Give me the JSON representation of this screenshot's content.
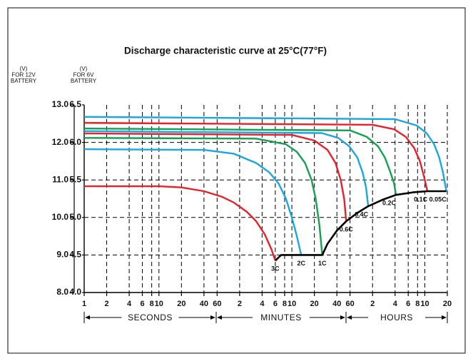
{
  "chart_data": {
    "type": "line",
    "title": "Discharge characteristic curve at 25°C(77°F)",
    "y_axis_label": [
      "(V)",
      "FOR 12V",
      "BATTERY"
    ],
    "y2_axis_label": [
      "(V)",
      "FOR 6V",
      "BATTERY"
    ],
    "x_sections": [
      "SECONDS",
      "MINUTES",
      "HOURS"
    ],
    "log_x": true,
    "grid": true,
    "xlim": [
      1,
      72000
    ],
    "xticks": [
      1,
      2,
      4,
      6,
      8,
      10,
      20,
      40,
      60,
      {
        "value": 120,
        "label": "2"
      },
      {
        "value": 240,
        "label": "4"
      },
      {
        "value": 360,
        "label": "6"
      },
      {
        "value": 480,
        "label": "8"
      },
      {
        "value": 600,
        "label": "10"
      },
      {
        "value": 1200,
        "label": "20"
      },
      {
        "value": 2400,
        "label": "40"
      },
      {
        "value": 3600,
        "label": "60"
      },
      {
        "value": 7200,
        "label": "2"
      },
      {
        "value": 14400,
        "label": "4"
      },
      {
        "value": 21600,
        "label": "6"
      },
      {
        "value": 28800,
        "label": "8"
      },
      {
        "value": 36000,
        "label": "10"
      },
      {
        "value": 72000,
        "label": "20"
      }
    ],
    "ylim": [
      8,
      13
    ],
    "yticks": [
      {
        "value": 13,
        "label": "13.0"
      },
      {
        "value": 12,
        "label": "12.0"
      },
      {
        "value": 11,
        "label": "11.0"
      },
      {
        "value": 10,
        "label": "10.0"
      },
      {
        "value": 9,
        "label": "9.0"
      },
      {
        "value": 8,
        "label": "8.0"
      }
    ],
    "y2lim": [
      4,
      6.5
    ],
    "y2ticks": [
      6.5,
      {
        "value": 6,
        "label": "6.0"
      },
      5.5,
      {
        "value": 5,
        "label": "5.0"
      },
      4.5,
      {
        "value": 4,
        "label": "4.0"
      }
    ],
    "series": [
      {
        "name": "3C",
        "color": "#e8202a",
        "x": [
          1,
          10,
          20,
          40,
          70,
          100,
          150,
          200,
          260,
          320,
          360
        ],
        "values": [
          10.83,
          10.83,
          10.8,
          10.7,
          10.55,
          10.4,
          10.15,
          9.9,
          9.55,
          9.15,
          8.85
        ]
      },
      {
        "name": "2C",
        "color": "#1aa6e0",
        "x": [
          1,
          40,
          100,
          200,
          300,
          400,
          500,
          600,
          700,
          800
        ],
        "values": [
          11.82,
          11.8,
          11.7,
          11.45,
          11.2,
          10.9,
          10.5,
          10.0,
          9.5,
          9.0
        ]
      },
      {
        "name": "1C",
        "color": "#14a050",
        "x": [
          1,
          200,
          500,
          700,
          900,
          1100,
          1250,
          1400,
          1530
        ],
        "values": [
          12.12,
          12.1,
          11.95,
          11.75,
          11.45,
          11.0,
          10.5,
          9.8,
          9.0
        ]
      },
      {
        "name": "0.6C",
        "color": "#e8202a",
        "x": [
          1,
          600,
          1200,
          1800,
          2300,
          2700,
          3000,
          3200
        ],
        "values": [
          12.24,
          12.2,
          12.05,
          11.8,
          11.45,
          11.0,
          10.5,
          9.9
        ]
      },
      {
        "name": "0.4C",
        "color": "#1aa6e0",
        "x": [
          1,
          1500,
          2500,
          3500,
          4500,
          5300,
          5900,
          6300
        ],
        "values": [
          12.3,
          12.25,
          12.12,
          11.9,
          11.6,
          11.2,
          10.8,
          10.3
        ]
      },
      {
        "name": "0.2C",
        "color": "#14a050",
        "x": [
          1,
          3600,
          6000,
          8500,
          10500,
          12500,
          14000,
          14800
        ],
        "values": [
          12.37,
          12.32,
          12.15,
          11.9,
          11.6,
          11.2,
          10.9,
          10.6
        ]
      },
      {
        "name": "0.1C",
        "color": "#e8202a",
        "x": [
          1,
          7200,
          14000,
          20000,
          26000,
          31000,
          35000,
          39000
        ],
        "values": [
          12.52,
          12.47,
          12.35,
          12.15,
          11.85,
          11.5,
          11.1,
          10.7
        ]
      },
      {
        "name": "0.05C",
        "color": "#1aa6e0",
        "x": [
          1,
          14400,
          28000,
          38000,
          48000,
          56000,
          63000,
          70000
        ],
        "values": [
          12.68,
          12.62,
          12.45,
          12.25,
          11.95,
          11.6,
          11.2,
          10.7
        ]
      }
    ],
    "cutoff_curve": {
      "color": "#000000",
      "x": [
        360,
        430,
        1530,
        1800,
        2400,
        3200,
        4500,
        6300,
        10000,
        14800,
        25000,
        39000,
        70000
      ],
      "values": [
        8.85,
        9.0,
        9.0,
        9.3,
        9.65,
        9.9,
        10.12,
        10.3,
        10.48,
        10.6,
        10.67,
        10.7,
        10.7
      ]
    }
  }
}
